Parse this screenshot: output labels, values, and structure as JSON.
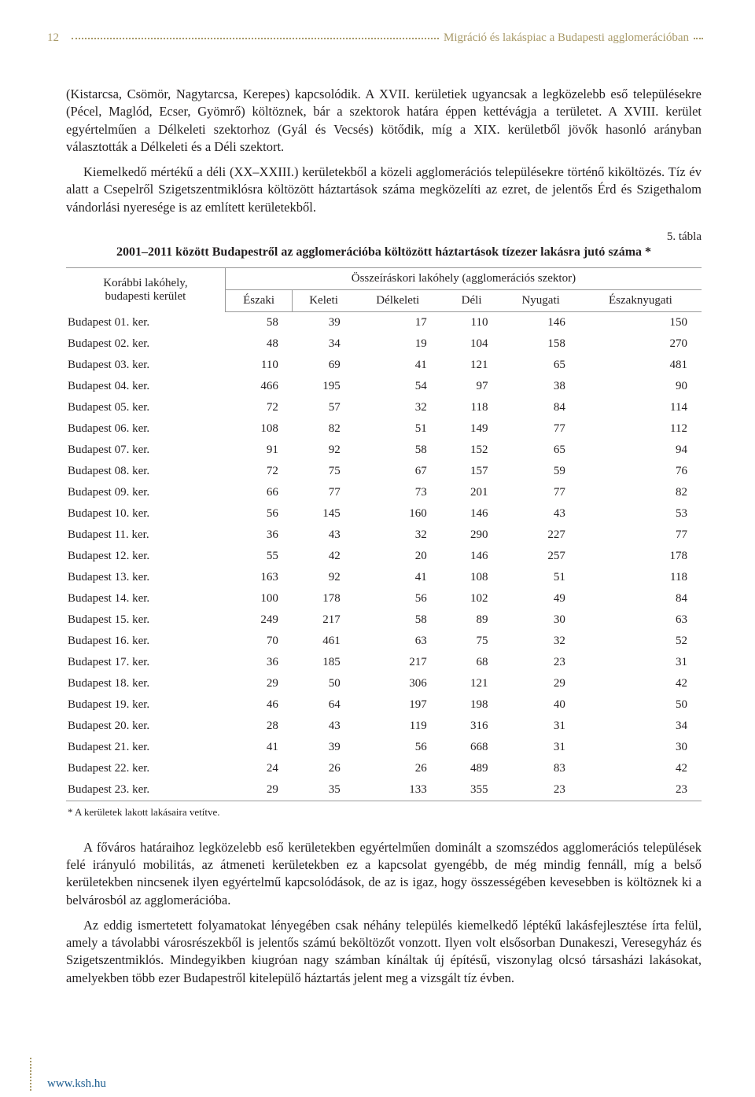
{
  "page_number": "12",
  "header_title": "Migráció és lakáspiac a Budapesti agglomerációban",
  "para1": "(Kistarcsa, Csömör, Nagytarcsa, Kerepes) kapcsolódik. A XVII. kerületiek ugyancsak a legközelebb eső településekre (Pécel, Maglód, Ecser, Gyömrő) költöznek, bár a szektorok határa éppen kettévágja a területet. A XVIII. kerület egyértelműen a Délkeleti szektorhoz (Gyál és Vecsés) kötődik, míg a XIX. kerületből jövők hasonló arányban választották a Délkeleti és a Déli szektort.",
  "para2": "Kiemelkedő mértékű a déli (XX–XXIII.) kerületekből a közeli agglomerációs településekre történő kiköltözés. Tíz év alatt a Csepelről Szigetszentmiklósra költözött háztartások száma megközelíti az ezret, de jelentős Érd és Szigethalom vándorlási nyeresége is az említett kerületekből.",
  "table_num": "5. tábla",
  "table_title": "2001–2011 között Budapestről az agglomerációba költözött háztartások tízezer lakásra jutó száma *",
  "col_group_label": "Összeíráskori lakóhely (agglomerációs szektor)",
  "row_head": "Korábbi lakóhely,\nbudapesti kerület",
  "columns": [
    "Északi",
    "Keleti",
    "Délkeleti",
    "Déli",
    "Nyugati",
    "Északnyugati"
  ],
  "rows": [
    {
      "label": "Budapest 01. ker.",
      "v": [
        58,
        39,
        17,
        110,
        146,
        150
      ]
    },
    {
      "label": "Budapest 02. ker.",
      "v": [
        48,
        34,
        19,
        104,
        158,
        270
      ]
    },
    {
      "label": "Budapest 03. ker.",
      "v": [
        110,
        69,
        41,
        121,
        65,
        481
      ]
    },
    {
      "label": "Budapest 04. ker.",
      "v": [
        466,
        195,
        54,
        97,
        38,
        90
      ]
    },
    {
      "label": "Budapest 05. ker.",
      "v": [
        72,
        57,
        32,
        118,
        84,
        114
      ]
    },
    {
      "label": "Budapest 06. ker.",
      "v": [
        108,
        82,
        51,
        149,
        77,
        112
      ]
    },
    {
      "label": "Budapest 07. ker.",
      "v": [
        91,
        92,
        58,
        152,
        65,
        94
      ]
    },
    {
      "label": "Budapest 08. ker.",
      "v": [
        72,
        75,
        67,
        157,
        59,
        76
      ]
    },
    {
      "label": "Budapest 09. ker.",
      "v": [
        66,
        77,
        73,
        201,
        77,
        82
      ]
    },
    {
      "label": "Budapest 10. ker.",
      "v": [
        56,
        145,
        160,
        146,
        43,
        53
      ]
    },
    {
      "label": "Budapest 11. ker.",
      "v": [
        36,
        43,
        32,
        290,
        227,
        77
      ]
    },
    {
      "label": "Budapest 12. ker.",
      "v": [
        55,
        42,
        20,
        146,
        257,
        178
      ]
    },
    {
      "label": "Budapest 13. ker.",
      "v": [
        163,
        92,
        41,
        108,
        51,
        118
      ]
    },
    {
      "label": "Budapest 14. ker.",
      "v": [
        100,
        178,
        56,
        102,
        49,
        84
      ]
    },
    {
      "label": "Budapest 15. ker.",
      "v": [
        249,
        217,
        58,
        89,
        30,
        63
      ]
    },
    {
      "label": "Budapest 16. ker.",
      "v": [
        70,
        461,
        63,
        75,
        32,
        52
      ]
    },
    {
      "label": "Budapest 17. ker.",
      "v": [
        36,
        185,
        217,
        68,
        23,
        31
      ]
    },
    {
      "label": "Budapest 18. ker.",
      "v": [
        29,
        50,
        306,
        121,
        29,
        42
      ]
    },
    {
      "label": "Budapest 19. ker.",
      "v": [
        46,
        64,
        197,
        198,
        40,
        50
      ]
    },
    {
      "label": "Budapest 20. ker.",
      "v": [
        28,
        43,
        119,
        316,
        31,
        34
      ]
    },
    {
      "label": "Budapest 21. ker.",
      "v": [
        41,
        39,
        56,
        668,
        31,
        30
      ]
    },
    {
      "label": "Budapest 22. ker.",
      "v": [
        24,
        26,
        26,
        489,
        83,
        42
      ]
    },
    {
      "label": "Budapest 23. ker.",
      "v": [
        29,
        35,
        133,
        355,
        23,
        23
      ]
    }
  ],
  "footnote": "* A kerületek lakott lakásaira vetítve.",
  "para3": "A főváros határaihoz legközelebb eső kerületekben egyértelműen dominált a szomszédos agglomerációs települések felé irányuló mobilitás, az átmeneti kerületekben ez a kapcsolat gyengébb, de még mindig fennáll, míg a belső kerületekben nincsenek ilyen egyértelmű kapcsolódások, de az is igaz, hogy összességében kevesebben is költöznek ki a belvárosból az agglomerációba.",
  "para4": "Az eddig ismertetett folyamatokat lényegében csak néhány település kiemelkedő léptékű lakásfejlesztése írta felül, amely a távolabbi városrészekből is jelentős számú beköltözőt vonzott. Ilyen volt elsősorban Dunakeszi, Veresegyház és Szigetszentmiklós. Mindegyikben kiugróan nagy számban kínáltak új építésű, viszonylag olcsó társasházi lakásokat, amelyekben több ezer Budapestről kitelepülő háztartás jelent meg a vizsgált tíz évben.",
  "footer_link": "www.ksh.hu"
}
